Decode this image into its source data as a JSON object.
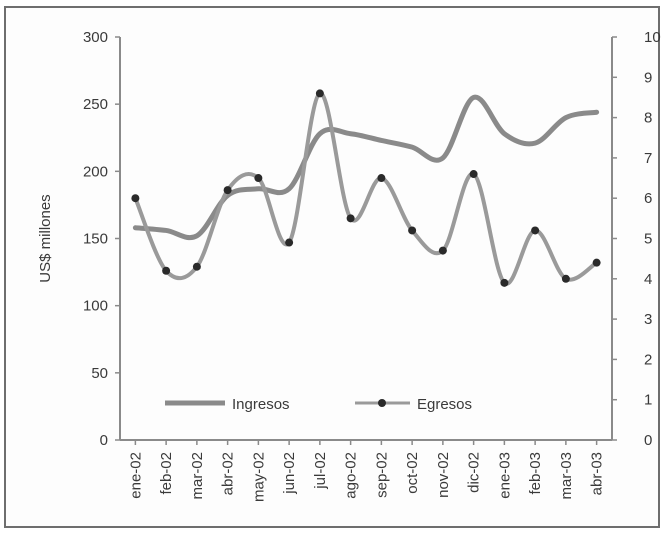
{
  "chart_data": {
    "type": "line",
    "title": "",
    "categories": [
      "ene-02",
      "feb-02",
      "mar-02",
      "abr-02",
      "may-02",
      "jun-02",
      "jul-02",
      "ago-02",
      "sep-02",
      "oct-02",
      "nov-02",
      "dic-02",
      "ene-03",
      "feb-03",
      "mar-03",
      "abr-03"
    ],
    "ylabel": "US$ millones",
    "ylim": [
      0,
      300
    ],
    "yticks": [
      "0",
      "50",
      "100",
      "150",
      "200",
      "250",
      "300"
    ],
    "y2lim": [
      0,
      10
    ],
    "y2ticks": [
      "0",
      "1",
      "2",
      "3",
      "4",
      "5",
      "6",
      "7",
      "8",
      "9",
      "10"
    ],
    "grid": false,
    "legend_position": "bottom-left",
    "series": [
      {
        "name": "Ingresos",
        "axis": "left",
        "marker": "none",
        "values": [
          158,
          156,
          152,
          182,
          187,
          187,
          228,
          228,
          223,
          218,
          210,
          255,
          228,
          221,
          240,
          244
        ]
      },
      {
        "name": "Egresos",
        "axis": "right",
        "marker": "dot",
        "values": [
          6.0,
          4.2,
          4.3,
          6.2,
          6.5,
          4.9,
          8.6,
          5.5,
          6.5,
          5.2,
          4.7,
          6.6,
          3.9,
          5.2,
          4.0,
          4.4
        ]
      }
    ],
    "colors": {
      "ingresos": "#8a8a8a",
      "egresos": "#9a9a9a",
      "marker": "#2a2a2a",
      "axis": "#8a8a8a"
    }
  }
}
